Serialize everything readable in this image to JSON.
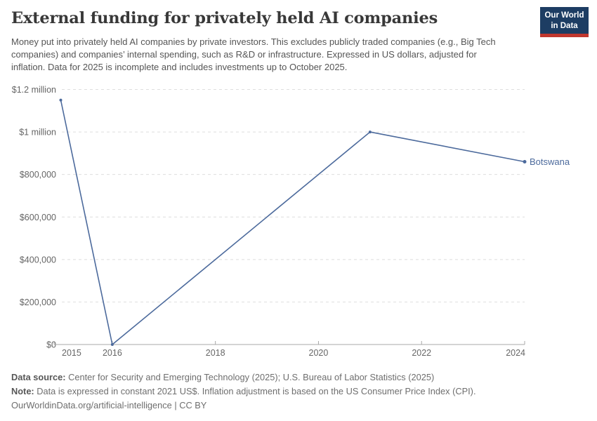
{
  "header": {
    "title": "External funding for privately held AI companies",
    "subtitle": "Money put into privately held AI companies by private investors. This excludes publicly traded companies (e.g., Big Tech companies) and companies’ internal spending, such as R&D or infrastructure. Expressed in US dollars, adjusted for inflation. Data for 2025 is incomplete and includes investments up to October 2025.",
    "logo": {
      "line1": "Our World",
      "line2": "in Data",
      "bg_color": "#1d3d63",
      "accent_color": "#c0372e"
    }
  },
  "chart_data": {
    "type": "line",
    "title": "External funding for privately held AI companies",
    "xlabel": "",
    "ylabel": "",
    "xlim": [
      2015,
      2024
    ],
    "ylim": [
      0,
      1200000
    ],
    "grid": "horizontal-dashed",
    "legend_position": "end-of-line-label",
    "series": [
      {
        "name": "Botswana",
        "color": "#4C6A9C",
        "points": [
          {
            "year": 2015,
            "value": 1150000
          },
          {
            "year": 2016,
            "value": 0
          },
          {
            "year": 2021,
            "value": 1000000
          },
          {
            "year": 2024,
            "value": 860000
          }
        ]
      }
    ],
    "x_ticks": [
      {
        "value": 2015,
        "label": "2015"
      },
      {
        "value": 2016,
        "label": "2016"
      },
      {
        "value": 2018,
        "label": "2018"
      },
      {
        "value": 2020,
        "label": "2020"
      },
      {
        "value": 2022,
        "label": "2022"
      },
      {
        "value": 2024,
        "label": "2024"
      }
    ],
    "y_ticks": [
      {
        "value": 0,
        "label": "$0"
      },
      {
        "value": 200000,
        "label": "$200,000"
      },
      {
        "value": 400000,
        "label": "$400,000"
      },
      {
        "value": 600000,
        "label": "$600,000"
      },
      {
        "value": 800000,
        "label": "$800,000"
      },
      {
        "value": 1000000,
        "label": "$1 million"
      },
      {
        "value": 1200000,
        "label": "$1.2 million"
      }
    ],
    "colors": {
      "gridline": "#dedede",
      "axis": "#a8a8a8",
      "tick_label": "#666666"
    }
  },
  "footer": {
    "source_label": "Data source:",
    "source_text": "Center for Security and Emerging Technology (2025); U.S. Bureau of Labor Statistics (2025)",
    "note_label": "Note:",
    "note_text": "Data is expressed in constant 2021 US$. Inflation adjustment is based on the US Consumer Price Index (CPI).",
    "license": "OurWorldinData.org/artificial-intelligence | CC BY"
  }
}
